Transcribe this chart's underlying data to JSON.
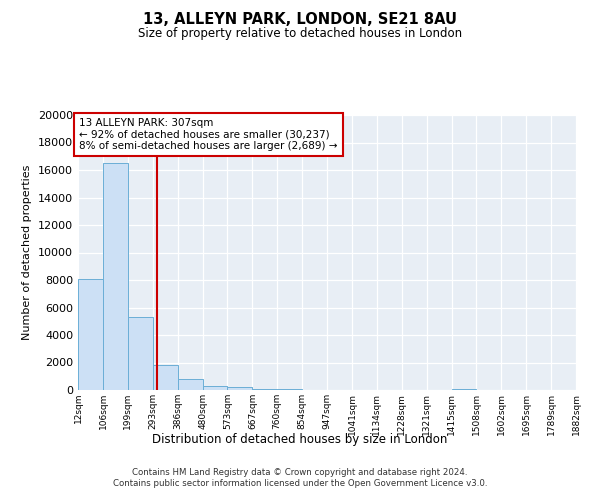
{
  "title": "13, ALLEYN PARK, LONDON, SE21 8AU",
  "subtitle": "Size of property relative to detached houses in London",
  "xlabel": "Distribution of detached houses by size in London",
  "ylabel": "Number of detached properties",
  "bin_edges": [
    12,
    106,
    199,
    293,
    386,
    480,
    573,
    667,
    760,
    854,
    947,
    1041,
    1134,
    1228,
    1321,
    1415,
    1508,
    1602,
    1695,
    1789,
    1882
  ],
  "bin_labels": [
    "12sqm",
    "106sqm",
    "199sqm",
    "293sqm",
    "386sqm",
    "480sqm",
    "573sqm",
    "667sqm",
    "760sqm",
    "854sqm",
    "947sqm",
    "1041sqm",
    "1134sqm",
    "1228sqm",
    "1321sqm",
    "1415sqm",
    "1508sqm",
    "1602sqm",
    "1695sqm",
    "1789sqm",
    "1882sqm"
  ],
  "counts": [
    8100,
    16500,
    5300,
    1800,
    800,
    300,
    200,
    100,
    100,
    0,
    0,
    0,
    0,
    0,
    0,
    100,
    0,
    0,
    0,
    0
  ],
  "property_size": 307,
  "bar_facecolor": "#cce0f5",
  "bar_edgecolor": "#6baed6",
  "vline_color": "#cc0000",
  "annotation_line1": "13 ALLEYN PARK: 307sqm",
  "annotation_line2": "← 92% of detached houses are smaller (30,237)",
  "annotation_line3": "8% of semi-detached houses are larger (2,689) →",
  "annotation_box_edgecolor": "#cc0000",
  "annotation_box_facecolor": "white",
  "ylim": [
    0,
    20000
  ],
  "yticks": [
    0,
    2000,
    4000,
    6000,
    8000,
    10000,
    12000,
    14000,
    16000,
    18000,
    20000
  ],
  "footer_line1": "Contains HM Land Registry data © Crown copyright and database right 2024.",
  "footer_line2": "Contains public sector information licensed under the Open Government Licence v3.0.",
  "plot_background": "#e8eef5"
}
